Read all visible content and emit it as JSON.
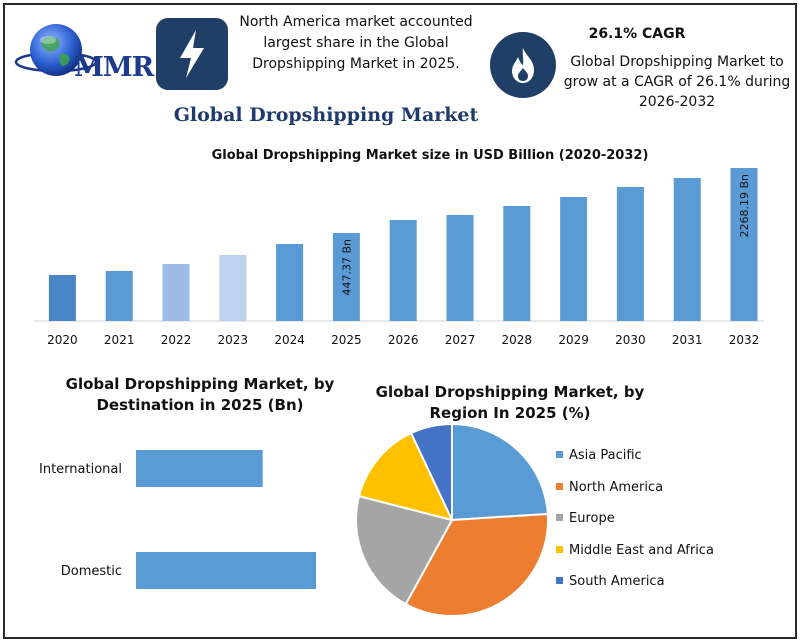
{
  "brand": {
    "logo_text": "MMR"
  },
  "headline": {
    "text": "North America market accounted largest share in the Global Dropshipping Market in 2025."
  },
  "cagr": {
    "title": "26.1% CAGR",
    "text": "Global Dropshipping Market to grow at a CAGR of 26.1% during 2026-2032"
  },
  "main_title": "Global Dropshipping Market",
  "colors": {
    "navy": "#1f3f66",
    "bar_blue": "#5b9bd5",
    "orange": "#ed7d31",
    "gray": "#a5a5a5",
    "gold": "#ffc000",
    "dark_blue": "#4472c4"
  },
  "chart_data": [
    {
      "type": "bar",
      "title": "Global Dropshipping Market size in USD Billion (2020-2032)",
      "categories": [
        "2020",
        "2021",
        "2022",
        "2023",
        "2024",
        "2025",
        "2026",
        "2027",
        "2028",
        "2029",
        "2030",
        "2031",
        "2032"
      ],
      "values": [
        145,
        185,
        230,
        290,
        375,
        447.37,
        564,
        615,
        689,
        780,
        880,
        965,
        2268.19
      ],
      "bar_colors": [
        "#4a86c5",
        "#5b9bd5",
        "#9dbde6",
        "#bcd2ee",
        "#5b9bd5",
        "#5b9bd5",
        "#5b9bd5",
        "#5b9bd5",
        "#5b9bd5",
        "#5b9bd5",
        "#5b9bd5",
        "#5b9bd5",
        "#5b9bd5"
      ],
      "data_labels": [
        {
          "index": 5,
          "text": "447.37 Bn"
        },
        {
          "index": 12,
          "text": "2268.19 Bn"
        }
      ]
    },
    {
      "type": "bar",
      "orientation": "horizontal",
      "title": "Global Dropshipping Market, by Destination in 2025 (Bn)",
      "categories": [
        "International",
        "Domestic"
      ],
      "values": [
        183,
        260
      ],
      "xlim": [
        0,
        260
      ],
      "color": "#5b9bd5"
    },
    {
      "type": "pie",
      "title": "Global Dropshipping Market, by Region In 2025 (%)",
      "categories": [
        "Asia Pacific",
        "North America",
        "Europe",
        "Middle East and Africa",
        "South America"
      ],
      "values": [
        24,
        34,
        21,
        14,
        7
      ],
      "colors": [
        "#5b9bd5",
        "#ed7d31",
        "#a5a5a5",
        "#ffc000",
        "#4472c4"
      ],
      "legend": "right"
    }
  ]
}
